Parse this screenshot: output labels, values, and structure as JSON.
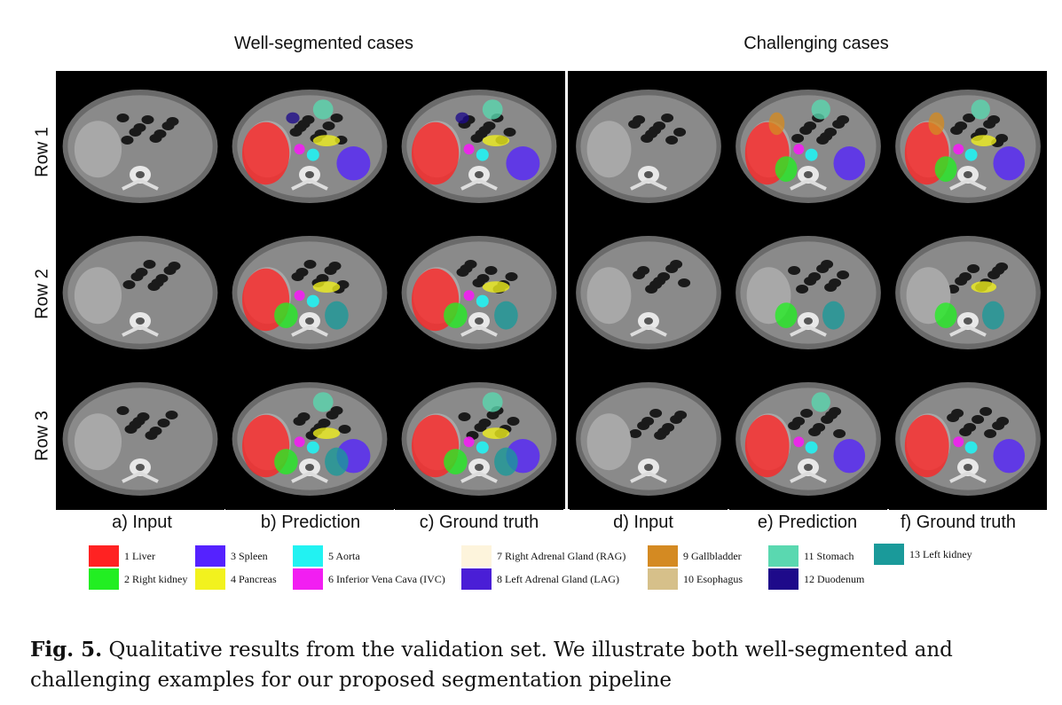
{
  "titles": {
    "left": "Well-segmented cases",
    "right": "Challenging cases"
  },
  "rows": [
    "Row 1",
    "Row 2",
    "Row 3"
  ],
  "columns": [
    "a) Input",
    "b) Prediction",
    "c) Ground truth",
    "d) Input",
    "e) Prediction",
    "f) Ground truth"
  ],
  "legend": [
    {
      "id": 1,
      "label": "1 Liver",
      "color": "#ff2222"
    },
    {
      "id": 2,
      "label": "2 Right kidney",
      "color": "#22ee22"
    },
    {
      "id": 3,
      "label": "3 Spleen",
      "color": "#5522ff"
    },
    {
      "id": 4,
      "label": "4 Pancreas",
      "color": "#f2f21e"
    },
    {
      "id": 5,
      "label": "5 Aorta",
      "color": "#22f2f2"
    },
    {
      "id": 6,
      "label": "6 Inferior Vena Cava (IVC)",
      "color": "#f21ef2"
    },
    {
      "id": 7,
      "label": "7 Right Adrenal Gland (RAG)",
      "color": "#fdf4dc"
    },
    {
      "id": 8,
      "label": "8 Left Adrenal Gland (LAG)",
      "color": "#4a1ed6"
    },
    {
      "id": 9,
      "label": "9 Gallbladder",
      "color": "#d48a22"
    },
    {
      "id": 10,
      "label": "10 Esophagus",
      "color": "#d6c08a"
    },
    {
      "id": 11,
      "label": "11 Stomach",
      "color": "#5ad8b0"
    },
    {
      "id": 12,
      "label": "12 Duodenum",
      "color": "#1e0a8a"
    },
    {
      "id": 13,
      "label": "13 Left kidney",
      "color": "#1a9a9a"
    }
  ],
  "caption": {
    "label": "Fig. 5.",
    "text": " Qualitative results from the validation set. We illustrate both well-segmented and challenging examples for our proposed segmentation pipeline"
  }
}
